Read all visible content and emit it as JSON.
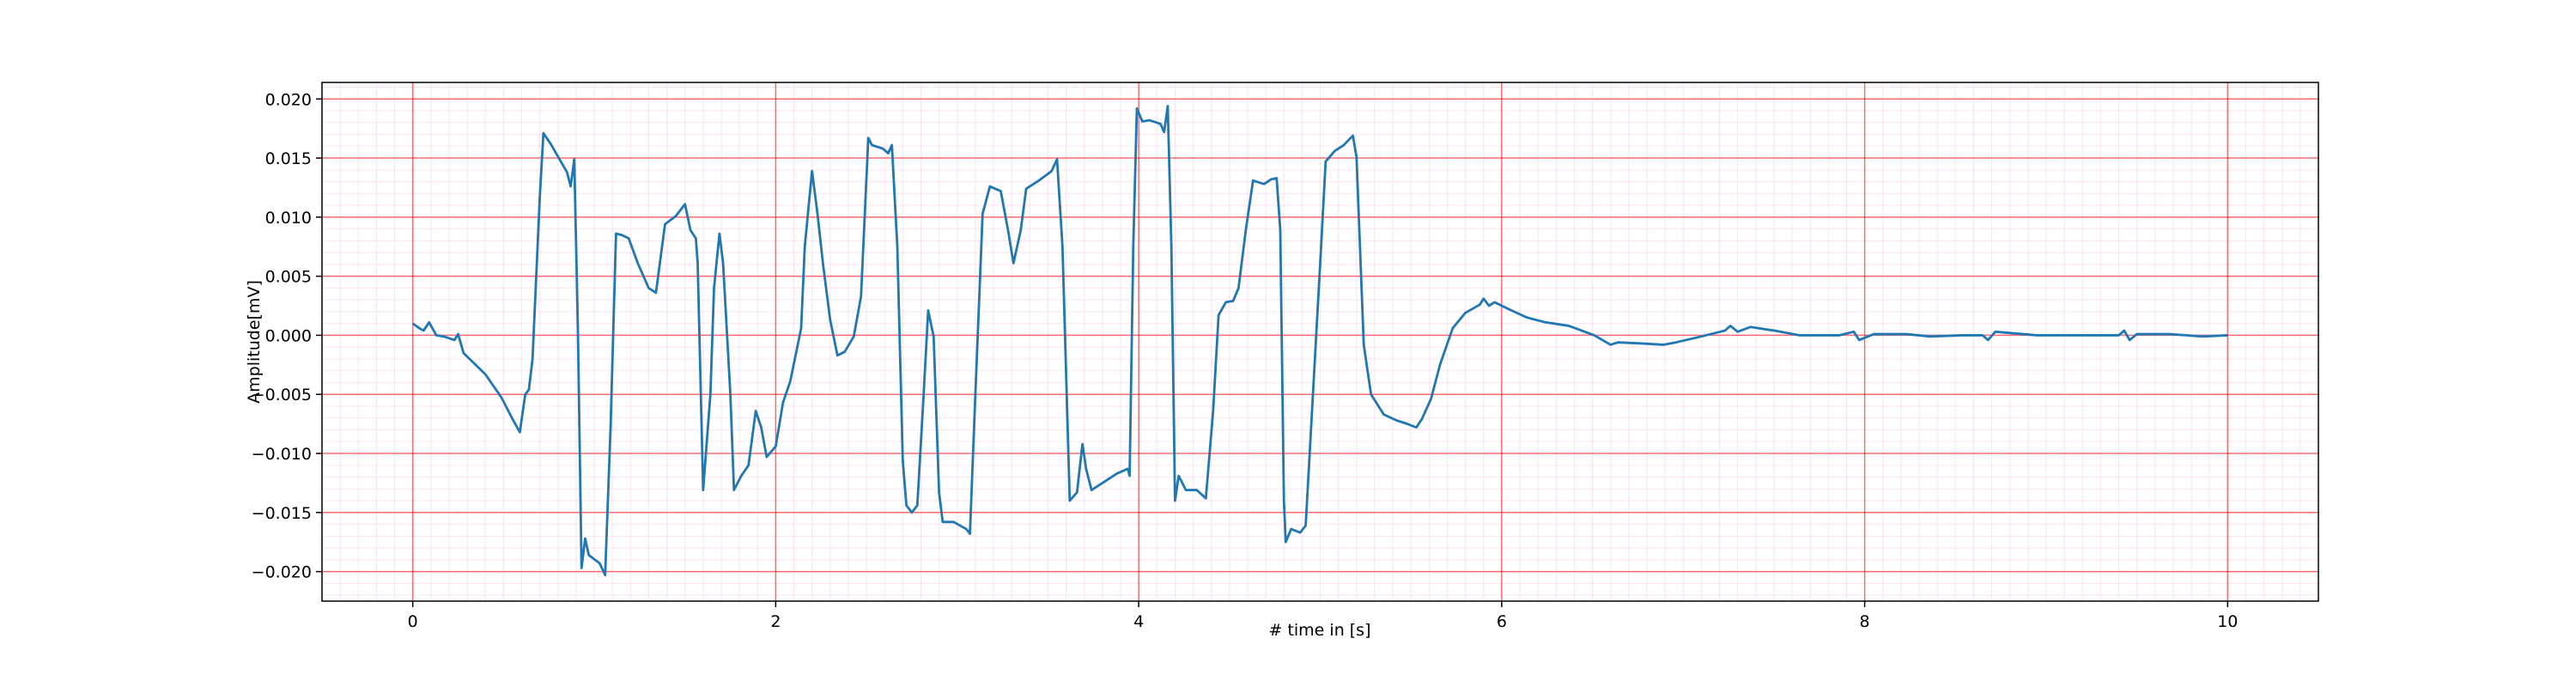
{
  "chart_data": {
    "type": "line",
    "xlabel": "# time in [s]",
    "ylabel": "Amplitude[mV]",
    "color": "#1f77b4",
    "grid": true,
    "minor_grid": true,
    "grid_color": "#ff0000",
    "minor_grid_color": "#ff66cc",
    "xlim": [
      -0.5,
      10.5
    ],
    "ylim": [
      -0.0225,
      0.0214
    ],
    "xticks": [
      0,
      2,
      4,
      6,
      8,
      10
    ],
    "yticks": [
      {
        "value": -0.02,
        "label": "−0.020"
      },
      {
        "value": -0.015,
        "label": "−0.015"
      },
      {
        "value": -0.01,
        "label": "−0.010"
      },
      {
        "value": -0.005,
        "label": "−0.005"
      },
      {
        "value": 0,
        "label": "0.000"
      },
      {
        "value": 0.005,
        "label": "0.005"
      },
      {
        "value": 0.01,
        "label": "0.010"
      },
      {
        "value": 0.015,
        "label": "0.015"
      },
      {
        "value": 0.02,
        "label": "0.020"
      }
    ],
    "x": [
      0,
      0.036,
      0.06,
      0.09,
      0.13,
      0.17,
      0.23,
      0.25,
      0.28,
      0.4,
      0.49,
      0.55,
      0.59,
      0.62,
      0.64,
      0.66,
      0.7,
      0.72,
      0.76,
      0.85,
      0.87,
      0.89,
      0.91,
      0.93,
      0.95,
      0.97,
      1.03,
      1.06,
      1.09,
      1.12,
      1.15,
      1.19,
      1.24,
      1.3,
      1.34,
      1.39,
      1.45,
      1.5,
      1.53,
      1.56,
      1.57,
      1.6,
      1.64,
      1.66,
      1.69,
      1.71,
      1.75,
      1.77,
      1.81,
      1.85,
      1.89,
      1.92,
      1.95,
      2.0,
      2.04,
      2.08,
      2.14,
      2.16,
      2.2,
      2.23,
      2.26,
      2.3,
      2.34,
      2.38,
      2.43,
      2.47,
      2.51,
      2.53,
      2.59,
      2.62,
      2.64,
      2.67,
      2.7,
      2.72,
      2.75,
      2.78,
      2.81,
      2.84,
      2.87,
      2.9,
      2.92,
      2.98,
      3.05,
      3.07,
      3.1,
      3.14,
      3.18,
      3.24,
      3.28,
      3.31,
      3.35,
      3.38,
      3.45,
      3.52,
      3.55,
      3.58,
      3.62,
      3.66,
      3.69,
      3.71,
      3.74,
      3.81,
      3.88,
      3.94,
      3.95,
      3.97,
      3.99,
      4.02,
      4.06,
      4.12,
      4.14,
      4.16,
      4.18,
      4.2,
      4.22,
      4.26,
      4.32,
      4.37,
      4.41,
      4.44,
      4.48,
      4.52,
      4.55,
      4.59,
      4.63,
      4.69,
      4.73,
      4.76,
      4.78,
      4.8,
      4.81,
      4.84,
      4.89,
      4.92,
      4.96,
      5.0,
      5.03,
      5.08,
      5.13,
      5.18,
      5.2,
      5.24,
      5.28,
      5.35,
      5.42,
      5.48,
      5.53,
      5.56,
      5.61,
      5.66,
      5.73,
      5.8,
      5.88,
      5.9,
      5.93,
      5.96,
      6.04,
      6.14,
      6.24,
      6.37,
      6.51,
      6.6,
      6.64,
      6.78,
      6.89,
      6.96,
      7.1,
      7.23,
      7.26,
      7.3,
      7.37,
      7.5,
      7.64,
      7.86,
      7.94,
      7.97,
      8.05,
      8.23,
      8.36,
      8.54,
      8.65,
      8.68,
      8.72,
      8.95,
      9.22,
      9.4,
      9.43,
      9.46,
      9.5,
      9.68,
      9.86,
      10.0
    ],
    "values": [
      0.001,
      0.0006,
      0.0004,
      0.0011,
      0.0,
      -0.0001,
      -0.0004,
      0.0001,
      -0.0015,
      -0.0033,
      -0.0053,
      -0.0071,
      -0.0082,
      -0.005,
      -0.0046,
      -0.002,
      0.0117,
      0.0171,
      0.0162,
      0.0138,
      0.0126,
      0.0149,
      0.0005,
      -0.0197,
      -0.0172,
      -0.0186,
      -0.0193,
      -0.0203,
      -0.0078,
      0.0086,
      0.0085,
      0.0082,
      0.0061,
      0.004,
      0.0036,
      0.0094,
      0.0101,
      0.0111,
      0.0089,
      0.0082,
      0.0061,
      -0.0131,
      -0.005,
      0.004,
      0.0086,
      0.0061,
      -0.005,
      -0.0131,
      -0.0119,
      -0.011,
      -0.0064,
      -0.0078,
      -0.0103,
      -0.0094,
      -0.0057,
      -0.0039,
      0.0006,
      0.0075,
      0.0139,
      0.0103,
      0.0061,
      0.0013,
      -0.0017,
      -0.0014,
      -0.0001,
      0.0033,
      0.0167,
      0.0161,
      0.0158,
      0.0154,
      0.0161,
      0.0075,
      -0.0106,
      -0.0144,
      -0.015,
      -0.0144,
      -0.0064,
      0.0021,
      -0.0001,
      -0.0133,
      -0.0158,
      -0.0158,
      -0.0164,
      -0.0168,
      -0.005,
      0.0103,
      0.0126,
      0.0122,
      0.0089,
      0.0061,
      0.0089,
      0.0124,
      0.0131,
      0.0139,
      0.0149,
      0.0075,
      -0.014,
      -0.0133,
      -0.0092,
      -0.0113,
      -0.0131,
      -0.0124,
      -0.0117,
      -0.0113,
      -0.0119,
      0.0075,
      0.0192,
      0.0181,
      0.0182,
      0.0179,
      0.0172,
      0.0194,
      0.0075,
      -0.014,
      -0.0119,
      -0.0131,
      -0.0131,
      -0.0138,
      -0.0064,
      0.0017,
      0.0028,
      0.0029,
      0.004,
      0.0089,
      0.0131,
      0.0128,
      0.0132,
      0.0133,
      0.0089,
      -0.014,
      -0.0175,
      -0.0164,
      -0.0167,
      -0.0161,
      -0.005,
      0.0061,
      0.0147,
      0.0156,
      0.0161,
      0.0169,
      0.0151,
      -0.0008,
      -0.005,
      -0.0067,
      -0.0072,
      -0.0075,
      -0.0078,
      -0.0071,
      -0.0054,
      -0.0025,
      0.0006,
      0.0019,
      0.0026,
      0.0031,
      0.0025,
      0.0028,
      0.0022,
      0.0015,
      0.0011,
      0.0008,
      0.0,
      -0.0008,
      -0.0006,
      -0.0007,
      -0.0008,
      -0.0006,
      -0.0001,
      0.0004,
      0.0008,
      0.0003,
      0.0007,
      0.0004,
      0.0,
      0.0,
      0.0003,
      -0.0004,
      0.0001,
      0.0001,
      -0.0001,
      0.0,
      0.0,
      -0.0004,
      0.0003,
      0.0,
      0.0,
      0.0,
      0.0004,
      -0.0004,
      0.0001,
      0.0001,
      -0.0001,
      0.0
    ]
  }
}
